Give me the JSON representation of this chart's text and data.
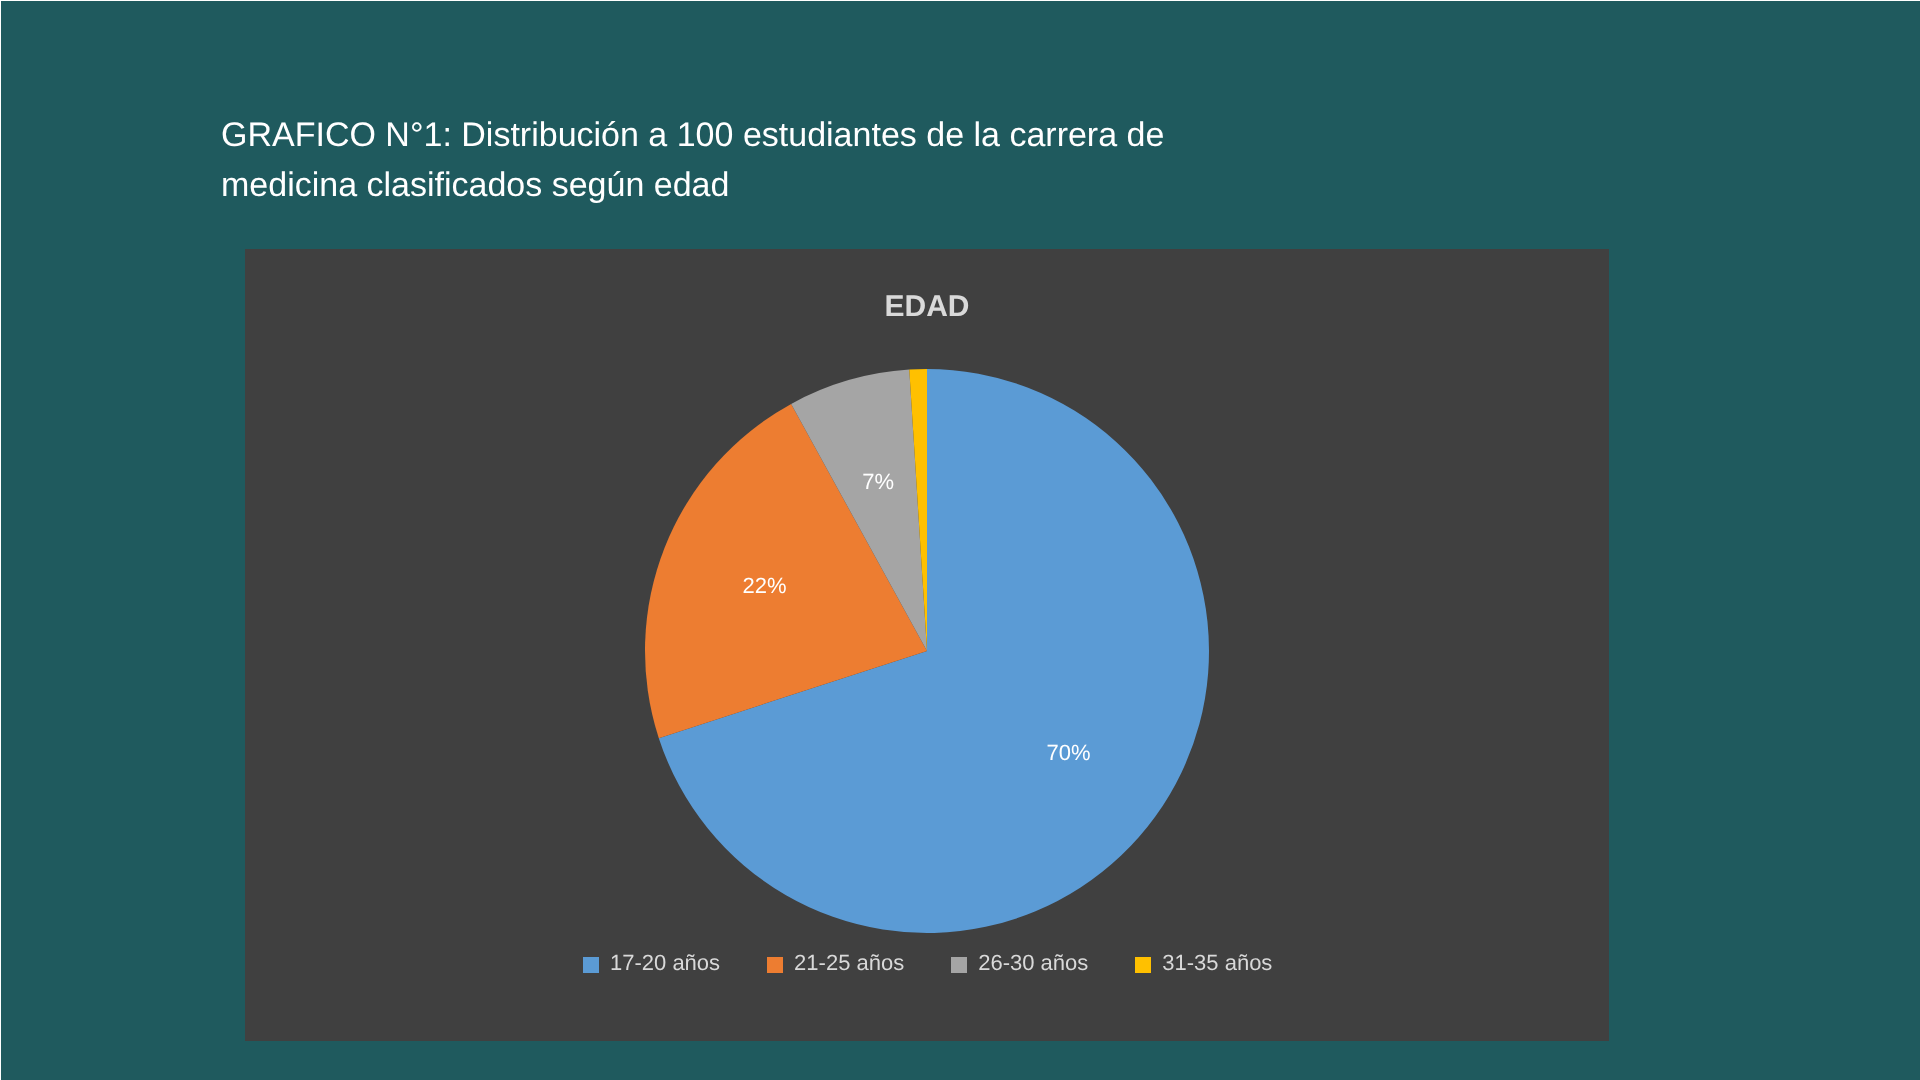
{
  "chart_data": {
    "type": "pie",
    "title": "GRAFICO N°1: Distribución a 100 estudiantes de la carrera de medicina clasificados según edad",
    "subtitle": "EDAD",
    "categories": [
      "17-20 años",
      "21-25 años",
      "26-30 años",
      "31-35 años"
    ],
    "values": [
      70,
      22,
      7,
      1
    ],
    "colors": [
      "#5b9bd5",
      "#ed7d31",
      "#a5a5a5",
      "#ffc000"
    ],
    "value_labels": [
      "70%",
      "22%",
      "7%",
      null
    ],
    "legend": "bottom"
  }
}
